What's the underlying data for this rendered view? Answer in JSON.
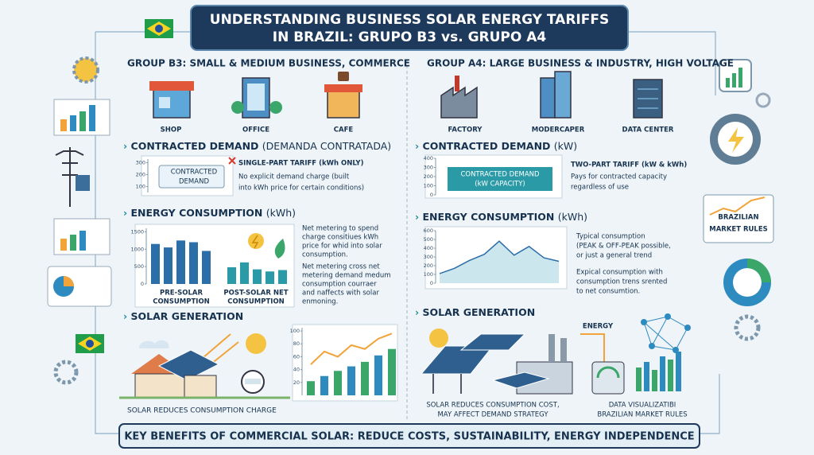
{
  "header": {
    "title_lines": [
      "UNDERSTANDING BUSINESS SOLAR ENERGY TARIFFS",
      "IN BRAZIL: GRUPO B3 vs. GRUPO A4"
    ]
  },
  "left": {
    "heading": "GROUP B3: SMALL & MEDIUM BUSINESS, COMMERCE",
    "types": [
      "SHOP",
      "OFFICE",
      "CAFE"
    ],
    "demand": {
      "heading_bold": "CONTRACTED DEMAND",
      "heading_rest": "(DEMANDA CONTRATADA)",
      "chart": {
        "type": "bar",
        "ylim": [
          50,
          330
        ],
        "yticks": [
          100,
          200,
          300
        ],
        "label_lines": [
          "CONTRACTED",
          "DEMAND"
        ]
      },
      "point_title": "SINGLE-PART TARIFF (kWh ONLY)",
      "point_lines": [
        "No explicit demand charge (built",
        "into kWh price for certain conditions)"
      ]
    },
    "consumption": {
      "heading_bold": "ENERGY CONSUMPTION",
      "heading_rest": "(kWh)",
      "chart": {
        "type": "bar",
        "ylim": [
          0,
          1600
        ],
        "yticks": [
          0,
          500,
          1000,
          1500
        ],
        "pre_values": [
          1150,
          1050,
          1250,
          1200,
          950
        ],
        "post_values": [
          480,
          620,
          420,
          360,
          400
        ],
        "pre_label": [
          "PRE-SOLAR",
          "CONSUMPTION"
        ],
        "post_label": [
          "POST-SOLAR NET",
          "CONSUMPTION"
        ]
      },
      "points": [
        [
          "Net metering to spend",
          "charge consitiues kWh",
          "price for whid into solar",
          "consumption."
        ],
        [
          "Net metering cross net",
          "metering demand medum",
          "consumption courraer",
          "and naffects with solar",
          "enmoning."
        ]
      ]
    },
    "solar": {
      "heading": "SOLAR GENERATION",
      "chart": {
        "type": "bar",
        "ylim": [
          0,
          105
        ],
        "yticks": [
          20,
          40,
          60,
          80,
          100
        ],
        "values": [
          22,
          30,
          38,
          45,
          52,
          62,
          72
        ],
        "line": [
          48,
          68,
          60,
          78,
          72,
          88,
          96
        ]
      },
      "caption": "SOLAR REDUCES CONSUMPTION CHARGE"
    }
  },
  "right": {
    "heading": "GROUP A4: LARGE BUSINESS & INDUSTRY, HIGH VOLTAGE",
    "types": [
      "FACTORY",
      "MODERCAPER",
      "DATA CENTER"
    ],
    "demand": {
      "heading_bold": "CONTRACTED DEMAND",
      "heading_rest": "(kW)",
      "chart": {
        "type": "bar",
        "ylim": [
          0,
          400
        ],
        "yticks": [
          0,
          100,
          200,
          300,
          400
        ],
        "label_lines": [
          "CONTRACTED DEMAND",
          "(kW CAPACITY)"
        ]
      },
      "point_title": "TWO-PART TARIFF (kW & kWh)",
      "point_lines": [
        "Pays for contracted capacity",
        "regardless of use"
      ]
    },
    "consumption": {
      "heading_bold": "ENERGY CONSUMPTION",
      "heading_rest": "(kWh)",
      "chart": {
        "type": "area",
        "ylim": [
          0,
          600
        ],
        "yticks": [
          0,
          100,
          200,
          300,
          400,
          500,
          600
        ],
        "values": [
          110,
          170,
          260,
          330,
          480,
          320,
          420,
          290,
          250
        ]
      },
      "points": [
        [
          "Typical consumption",
          "(PEAK & OFF-PEAK possible,",
          "or just a general trend"
        ],
        [
          "Expical consumption with",
          "consumption trens srented",
          "to net consumtion."
        ]
      ]
    },
    "solar": {
      "heading": "SOLAR GENERATION",
      "energy_label": "ENERGY",
      "caption": [
        "SOLAR REDUCES CONSUMPTION COST,",
        "MAY AFFECT DEMAND STRATEGY"
      ],
      "data_caption": [
        "DATA VISUALIZATIBI",
        "BRAZILIAN MARKET RULES"
      ]
    }
  },
  "side_card": [
    "BRAZILIAN",
    "MARKET RULES"
  ],
  "footer": "KEY BENEFITS OF COMMERCIAL SOLAR: REDUCE COSTS, SUSTAINABILITY, ENERGY INDEPENDENCE"
}
